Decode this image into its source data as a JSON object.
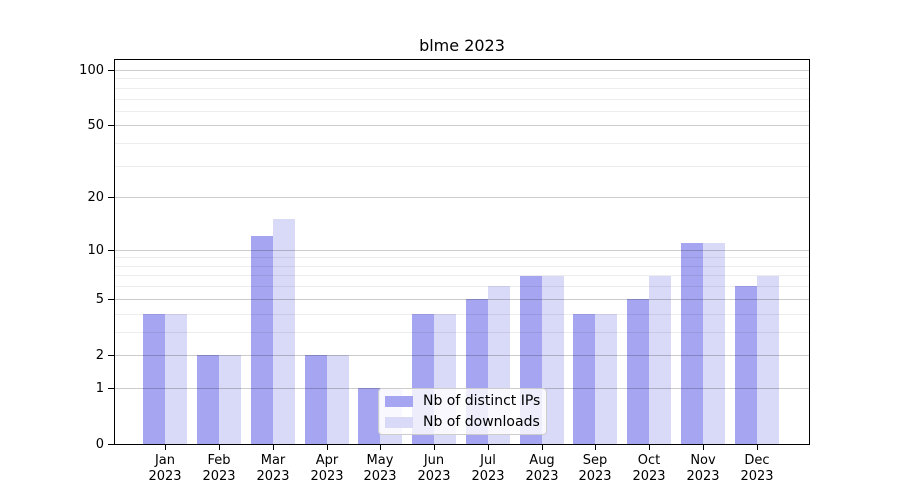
{
  "chart_data": {
    "type": "bar",
    "title": "blme 2023",
    "year_label": "2023",
    "months": [
      "Jan",
      "Feb",
      "Mar",
      "Apr",
      "May",
      "Jun",
      "Jul",
      "Aug",
      "Sep",
      "Oct",
      "Nov",
      "Dec"
    ],
    "series": [
      {
        "name": "Nb of distinct IPs",
        "color": "#a5a5f1",
        "values": [
          4,
          2,
          12,
          2,
          1,
          4,
          5,
          7,
          4,
          5,
          11,
          6
        ]
      },
      {
        "name": "Nb of downloads",
        "color": "#d9d9f8",
        "values": [
          4,
          2,
          15,
          2,
          1,
          4,
          6,
          7,
          4,
          7,
          11,
          7
        ]
      }
    ],
    "y_scale": "log1p",
    "y_axis_ticks": [
      0,
      1,
      2,
      5,
      10,
      20,
      50,
      100
    ],
    "y_gridlines_major": [
      1,
      2,
      5,
      10,
      20,
      50,
      100
    ],
    "y_gridlines_minor": [
      3,
      4,
      6,
      7,
      8,
      9,
      30,
      40,
      60,
      70,
      80,
      90
    ],
    "y_top_value": 113.3,
    "grid": "on",
    "legend_position": "lower center"
  },
  "colors": {
    "background": "#ffffff",
    "axis": "#000000",
    "legend_border": "#cccccc"
  }
}
